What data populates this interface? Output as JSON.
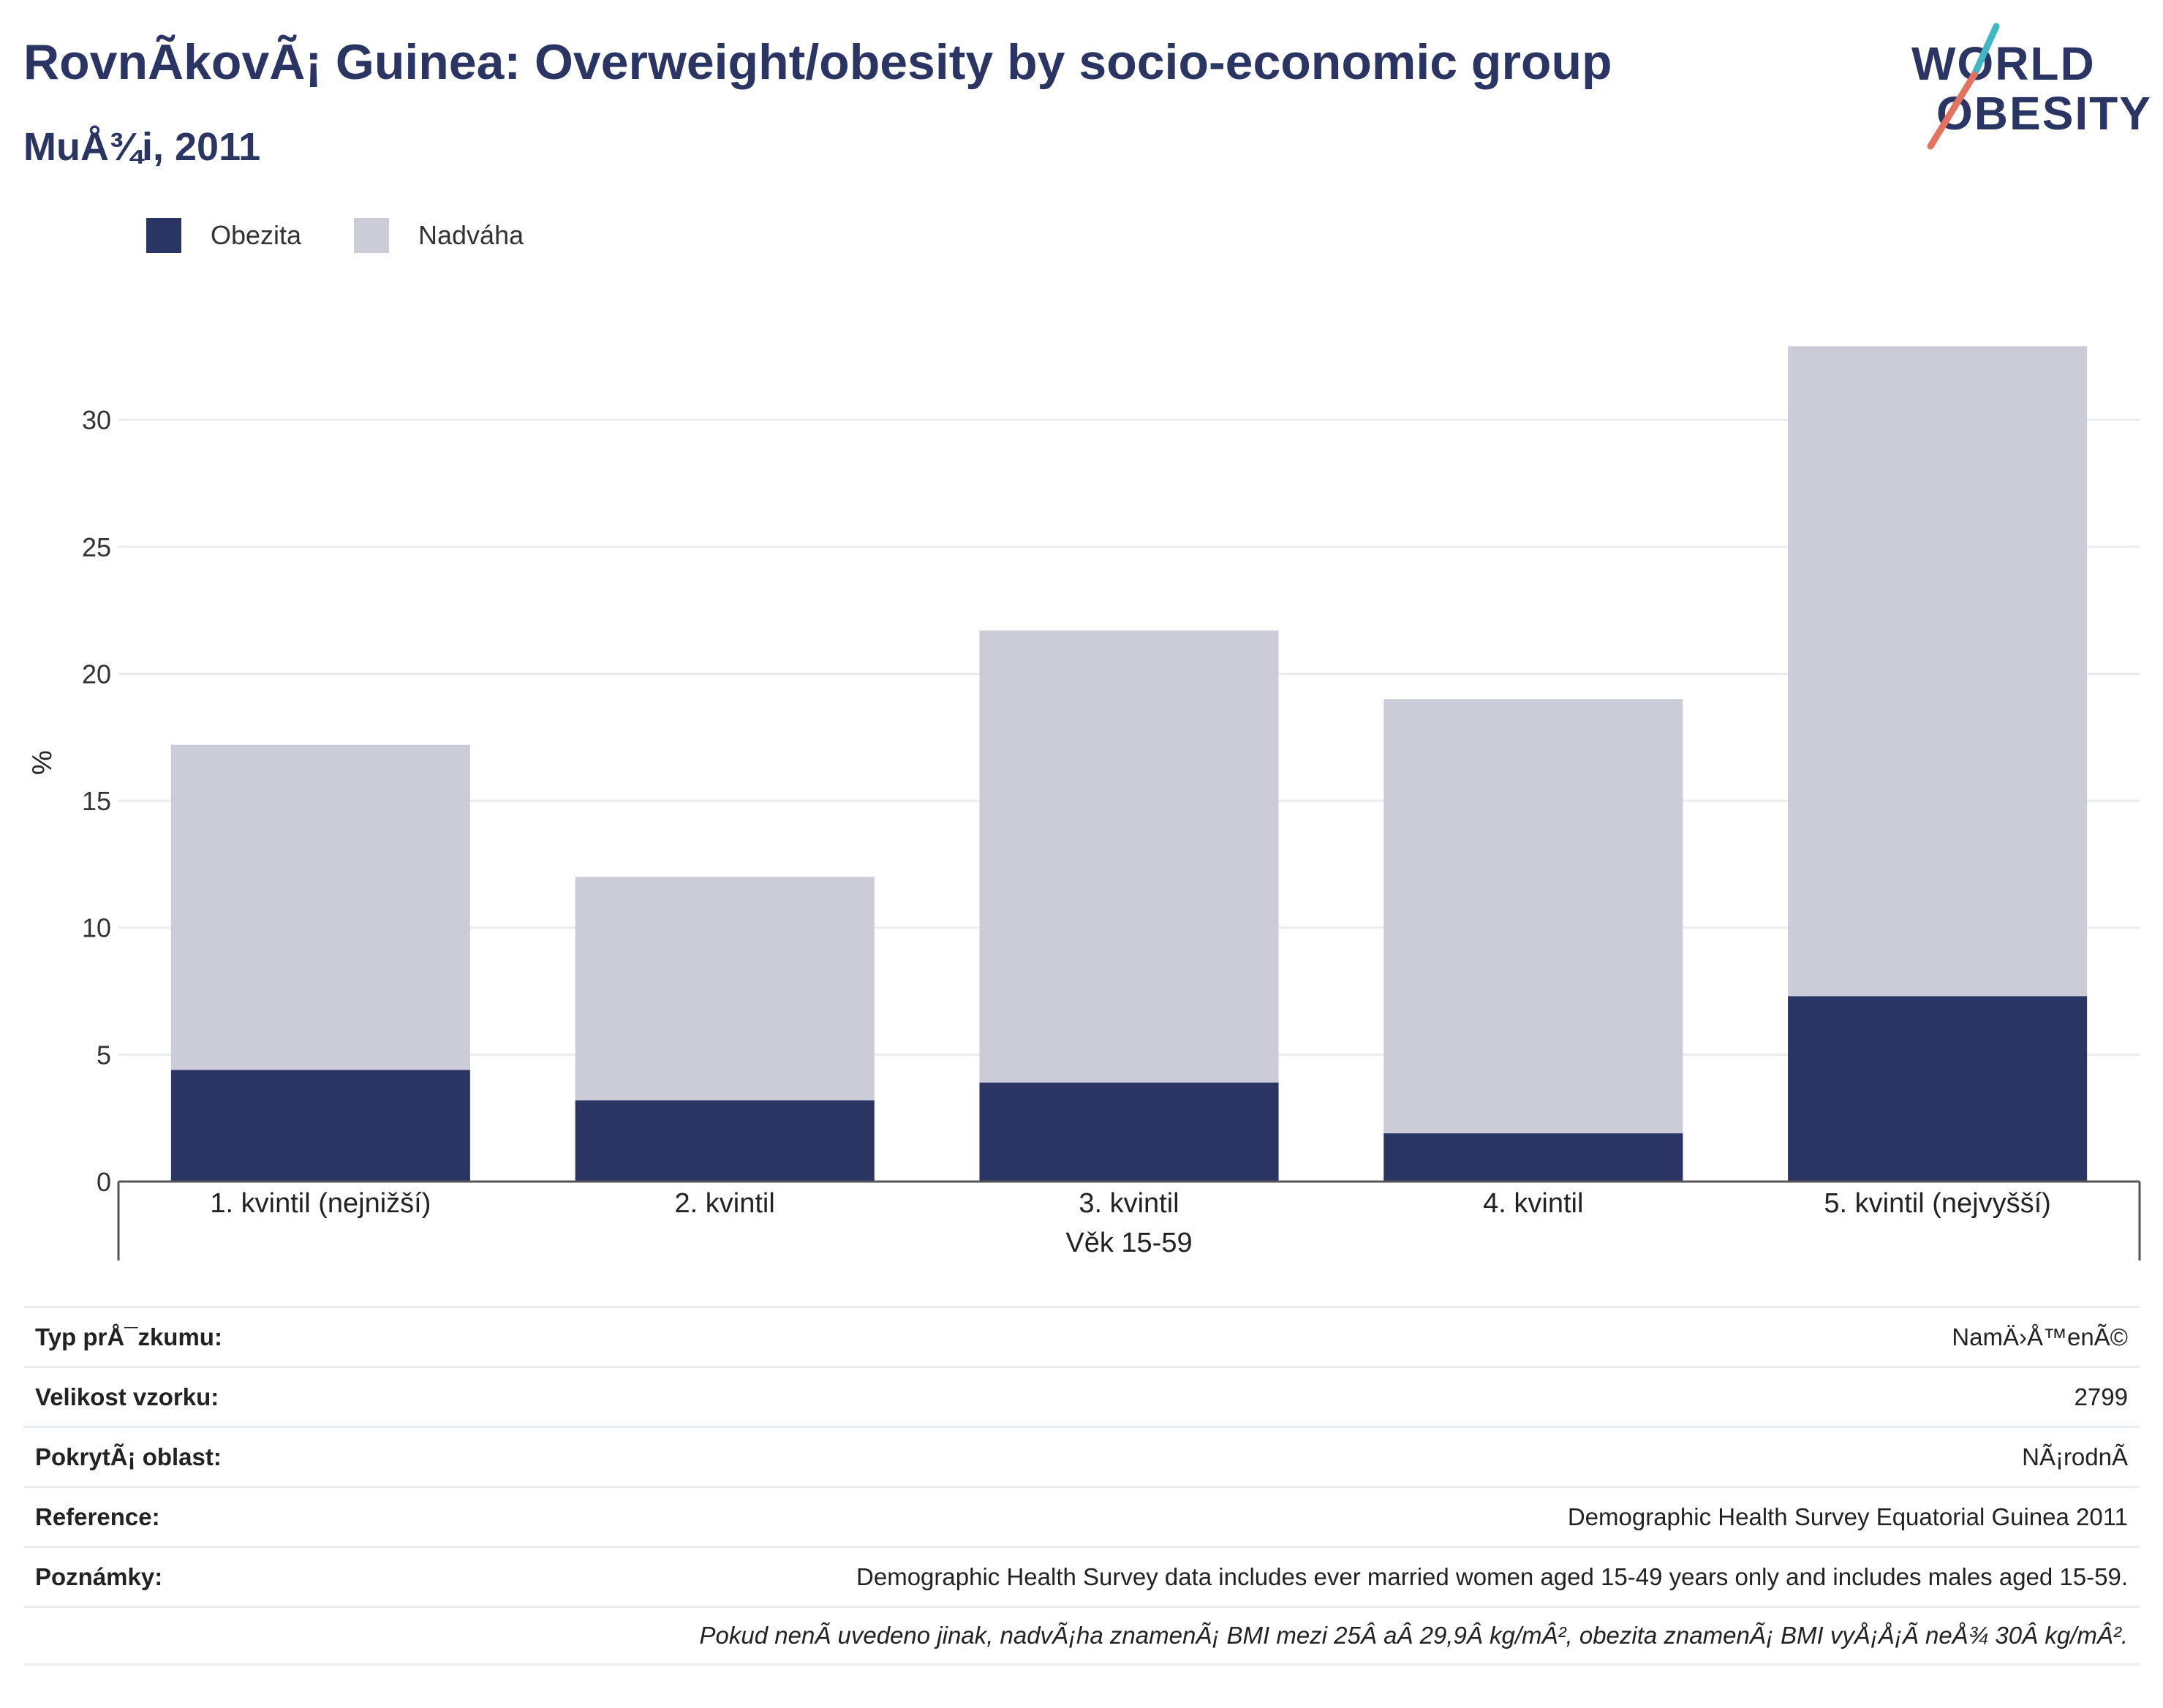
{
  "header": {
    "title": "RovnÃ­kovÃ¡ Guinea: Overweight/obesity by socio-economic group",
    "subtitle": "MuÅ¾i, 2011"
  },
  "logo": {
    "line1": "WORLD",
    "line2": "OBESITY"
  },
  "colors": {
    "obesity": "#2b3564",
    "overweight": "#cbccd8",
    "grid": "#e9edf2",
    "axis": "#555555"
  },
  "chart_data": {
    "type": "bar",
    "stacked": true,
    "categories": [
      "1. kvintil (nejnižší)",
      "2. kvintil",
      "3. kvintil",
      "4. kvintil",
      "5. kvintil (nejvyšší)"
    ],
    "series": [
      {
        "name": "Obezita",
        "values": [
          4.4,
          3.2,
          3.9,
          1.9,
          7.3
        ]
      },
      {
        "name": "Nadváha",
        "values": [
          12.8,
          8.8,
          17.8,
          17.1,
          25.6
        ]
      }
    ],
    "ylabel": "%",
    "xlabel": "Věk 15-59",
    "ylim": [
      0,
      33
    ],
    "yticks": [
      0,
      5,
      10,
      15,
      20,
      25,
      30
    ],
    "grid": true,
    "legend": "top-left"
  },
  "info": [
    {
      "label": "Typ prÅ¯zkumu:",
      "value": "NamÄ›Å™enÃ©"
    },
    {
      "label": "Velikost vzorku:",
      "value": "2799"
    },
    {
      "label": "PokrytÃ¡ oblast:",
      "value": "NÃ¡rodnÃ­"
    },
    {
      "label": "Reference:",
      "value": "Demographic Health Survey Equatorial Guinea 2011"
    },
    {
      "label": "Poznámky:",
      "value": "Demographic Health Survey data includes ever married women aged 15-49 years only and includes males aged 15-59."
    }
  ],
  "footnote": "Pokud nenÃ­ uvedeno jinak, nadvÃ¡ha znamenÃ¡ BMI mezi 25Â aÂ 29,9Â kg/mÂ², obezita znamenÃ¡ BMI vyÅ¡Å¡Ã­ neÅ¾ 30Â kg/mÂ²."
}
